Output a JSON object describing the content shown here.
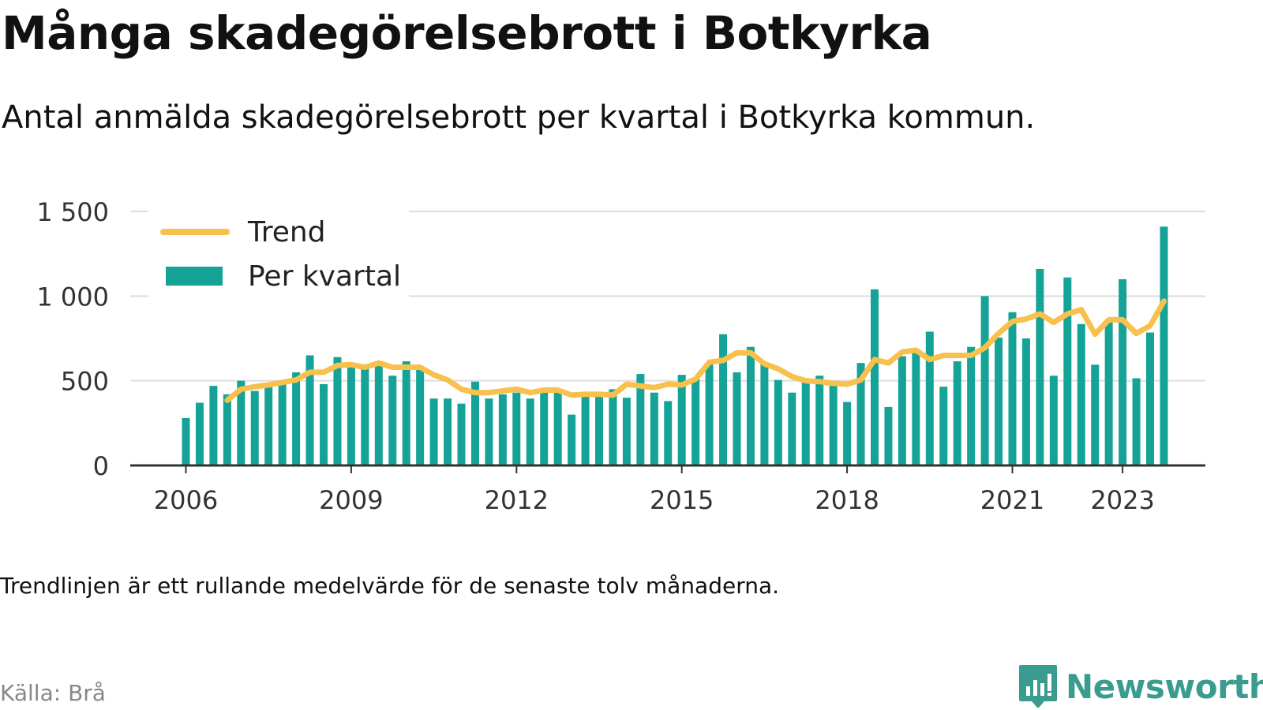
{
  "title": "Många skadegörelsebrott i Botkyrka",
  "subtitle": "Antal anmälda skadegörelsebrott per kvartal i Botkyrka kommun.",
  "footnote": "Trendlinjen är ett rullande medelvärde för de senaste tolv månaderna.",
  "source": "Källa: Brå",
  "logo": {
    "text": "Newsworthy",
    "icon": "newsworthy-chart-icon",
    "color": "#3a9b8f"
  },
  "colors": {
    "bar": "#14a396",
    "trend": "#f8c04c",
    "grid": "#dddddd",
    "axis": "#333333"
  },
  "chart_data": {
    "type": "bar",
    "x_start": "2006 Q1",
    "x_ticks": [
      "2006",
      "2009",
      "2012",
      "2015",
      "2018",
      "2021",
      "2023"
    ],
    "y_ticks": [
      "0",
      "500",
      "1 000",
      "1 500"
    ],
    "ylim": [
      0,
      1500
    ],
    "grid": true,
    "legend_position": "top-left",
    "series": [
      {
        "name": "Per kvartal",
        "type": "bar",
        "values": [
          280,
          370,
          470,
          420,
          500,
          440,
          470,
          500,
          550,
          650,
          480,
          640,
          600,
          570,
          600,
          530,
          615,
          580,
          395,
          395,
          365,
          495,
          395,
          420,
          430,
          395,
          450,
          440,
          300,
          420,
          415,
          450,
          400,
          540,
          430,
          380,
          535,
          510,
          600,
          775,
          550,
          700,
          600,
          505,
          430,
          500,
          530,
          470,
          375,
          605,
          1040,
          345,
          645,
          680,
          790,
          465,
          615,
          700,
          1000,
          755,
          905,
          750,
          1160,
          530,
          1110,
          835,
          595,
          850,
          1100,
          515,
          785,
          1410
        ]
      },
      {
        "name": "Trend",
        "type": "line",
        "values": [
          null,
          null,
          null,
          385,
          450,
          465,
          475,
          490,
          505,
          550,
          550,
          590,
          595,
          580,
          605,
          580,
          580,
          580,
          535,
          505,
          450,
          430,
          430,
          440,
          450,
          430,
          445,
          445,
          415,
          420,
          420,
          415,
          480,
          470,
          460,
          480,
          475,
          510,
          610,
          620,
          665,
          665,
          600,
          570,
          525,
          500,
          495,
          485,
          480,
          505,
          625,
          605,
          670,
          680,
          625,
          650,
          650,
          650,
          695,
          780,
          850,
          865,
          895,
          845,
          895,
          920,
          775,
          860,
          860,
          780,
          825,
          970
        ]
      }
    ]
  }
}
